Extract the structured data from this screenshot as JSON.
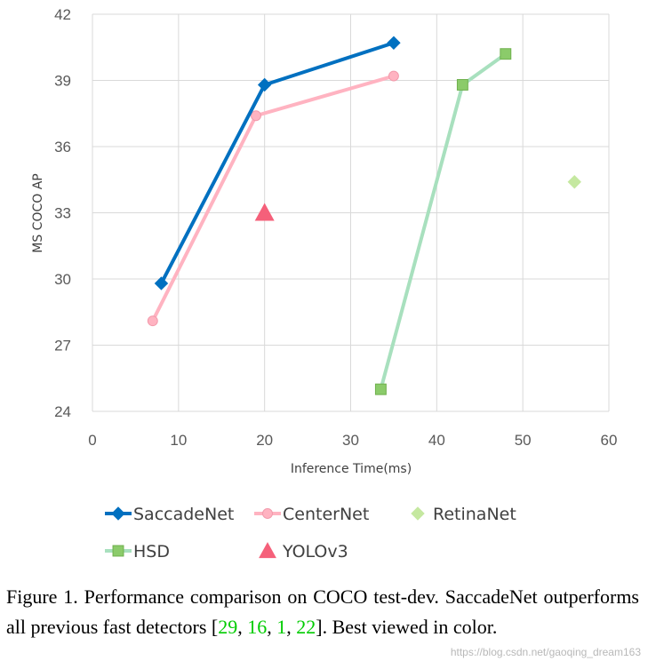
{
  "chart_data": {
    "type": "line",
    "xlabel": "Inference Time(ms)",
    "ylabel": "MS COCO AP",
    "xlim": [
      0,
      60
    ],
    "ylim": [
      24,
      42
    ],
    "xticks": [
      0,
      10,
      20,
      30,
      40,
      50,
      60
    ],
    "yticks": [
      24,
      27,
      30,
      33,
      36,
      39,
      42
    ],
    "grid": true,
    "legend_position": "bottom",
    "series": [
      {
        "name": "SaccadeNet",
        "color": "#0070C0",
        "marker": "diamond",
        "line": true,
        "x": [
          8,
          20,
          35
        ],
        "y": [
          29.8,
          38.8,
          40.7
        ]
      },
      {
        "name": "CenterNet",
        "color": "#FFB3C1",
        "marker": "circle",
        "line": true,
        "x": [
          7,
          19,
          35
        ],
        "y": [
          28.1,
          37.4,
          39.2
        ]
      },
      {
        "name": "RetinaNet",
        "color": "#C5E8A0",
        "marker": "diamond",
        "line": false,
        "x": [
          56
        ],
        "y": [
          34.4
        ]
      },
      {
        "name": "HSD",
        "color": "#8BCB6A",
        "marker": "square",
        "line": true,
        "line_color": "#A8E0BE",
        "x": [
          33.5,
          43,
          48
        ],
        "y": [
          25.0,
          38.8,
          40.2
        ]
      },
      {
        "name": "YOLOv3",
        "color": "#F5607A",
        "marker": "triangle",
        "line": false,
        "x": [
          20
        ],
        "y": [
          33.0
        ]
      }
    ]
  },
  "caption": {
    "lead": "Figure 1. Performance comparison on COCO test-dev.  SaccadeNet outperforms all previous fast detectors [",
    "refs": [
      "29",
      "16",
      "1",
      "22"
    ],
    "sep": ", ",
    "tail": "]. Best viewed in color."
  },
  "watermark": "https://blog.csdn.net/gaoqing_dream163"
}
